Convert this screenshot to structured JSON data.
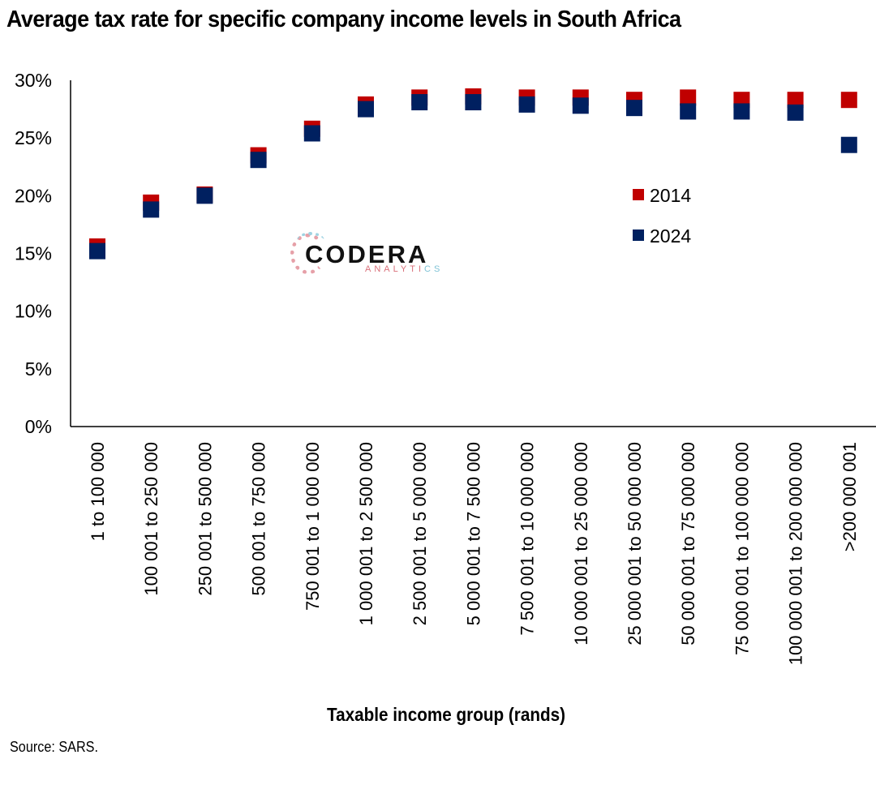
{
  "chart_data": {
    "type": "scatter",
    "title": "Average tax rate for specific company income levels in South Africa",
    "xlabel": "Taxable income group (rands)",
    "ylabel": "",
    "ylim": [
      0,
      30
    ],
    "yticks": [
      "0%",
      "5%",
      "10%",
      "15%",
      "20%",
      "25%",
      "30%"
    ],
    "ytick_values": [
      0,
      5,
      10,
      15,
      20,
      25,
      30
    ],
    "grid": false,
    "legend_position": "right",
    "categories": [
      "1 to 100 000",
      "100 001 to 250 000",
      "250 001 to 500 000",
      "500 001 to 750 000",
      "750 001 to 1 000 000",
      "1 000 001 to 2 500 000",
      "2 500 001 to 5 000 000",
      "5 000 001 to 7 500 000",
      "7 500 001 to 10 000 000",
      "10 000 001 to 25 000 000",
      "25 000 001 to 50 000 000",
      "50 000 001 to 75 000 000",
      "75 000 001 to 100 000 000",
      "100 000 001 to 200 000 000",
      ">200 000 001"
    ],
    "series": [
      {
        "name": "2014",
        "color": "#c00000",
        "values": [
          15.6,
          19.4,
          20.1,
          23.5,
          25.8,
          27.9,
          28.5,
          28.6,
          28.5,
          28.5,
          28.3,
          28.5,
          28.3,
          28.3,
          28.3
        ]
      },
      {
        "name": "2024",
        "color": "#002060",
        "values": [
          15.2,
          18.8,
          20.0,
          23.1,
          25.4,
          27.5,
          28.1,
          28.1,
          27.9,
          27.8,
          27.6,
          27.3,
          27.3,
          27.2,
          24.4
        ]
      }
    ]
  },
  "source": "Source: SARS.",
  "logo": {
    "name": "CODERA",
    "sub": "ANALYTI",
    "sub_end": "CS"
  }
}
